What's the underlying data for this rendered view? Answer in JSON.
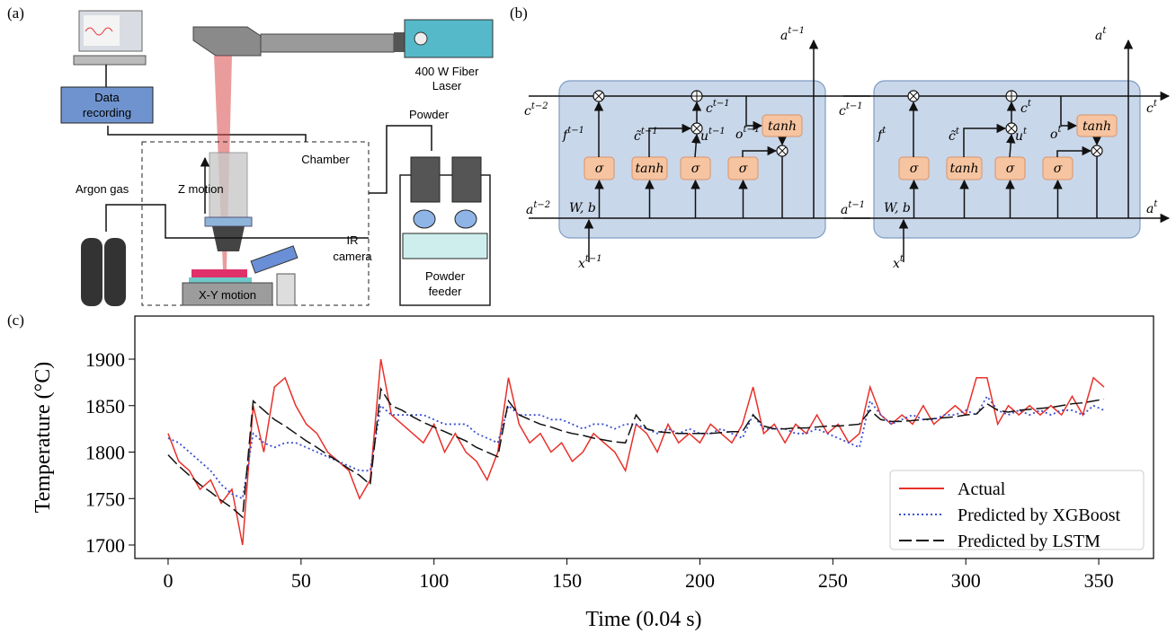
{
  "panel_labels": [
    "(a)",
    "(b)",
    "(c)"
  ],
  "diagram_a": {
    "laser": [
      "400 W Fiber",
      "Laser"
    ],
    "data_recording": [
      "Data",
      "recording"
    ],
    "powder": "Powder",
    "chamber": "Chamber",
    "z_motion": "Z motion",
    "argon_gas": "Argon gas",
    "ir_camera": [
      "IR",
      "camera"
    ],
    "xy_motion": "X-Y motion",
    "powder_feeder": [
      "Powder",
      "feeder"
    ]
  },
  "diagram_b": {
    "cells": [
      {
        "c_prev": {
          "base": "c",
          "sup": "t−2"
        },
        "a_prev": {
          "base": "a",
          "sup": "t−2"
        },
        "x": {
          "base": "x",
          "sup": "t−1"
        },
        "f": {
          "base": "f",
          "sup": "t−1"
        },
        "c_tilde": {
          "base": "c̃",
          "sup": "t−1"
        },
        "u": {
          "base": "u",
          "sup": "t−1"
        },
        "o": {
          "base": "o",
          "sup": "t−1"
        },
        "c": {
          "base": "c",
          "sup": "t−1"
        },
        "a_top": {
          "base": "a",
          "sup": "t−1"
        },
        "w_b": "W, b",
        "gates": [
          "σ",
          "tanh",
          "σ",
          "σ"
        ],
        "tanh_out": "tanh"
      },
      {
        "c_prev": {
          "base": "c",
          "sup": "t−1"
        },
        "a_prev": {
          "base": "a",
          "sup": "t−1"
        },
        "x": {
          "base": "x",
          "sup": "t"
        },
        "f": {
          "base": "f",
          "sup": "t"
        },
        "c_tilde": {
          "base": "c̃",
          "sup": "t"
        },
        "u": {
          "base": "u",
          "sup": "t"
        },
        "o": {
          "base": "o",
          "sup": "t"
        },
        "c": {
          "base": "c",
          "sup": "t"
        },
        "a_top": {
          "base": "a",
          "sup": "t"
        },
        "w_b": "W, b",
        "gates": [
          "σ",
          "tanh",
          "σ",
          "σ"
        ],
        "tanh_out": "tanh"
      }
    ],
    "c_final": {
      "base": "c",
      "sup": "t"
    },
    "a_final": {
      "base": "a",
      "sup": "t"
    }
  },
  "chart_data": {
    "type": "line",
    "xlabel": "Time (0.04 s)",
    "ylabel": "Temperature (°C)",
    "xlim": [
      -12.5,
      370.6
    ],
    "ylim": [
      1685.5,
      1946.4
    ],
    "xticks": [
      0,
      50,
      100,
      150,
      200,
      250,
      300,
      350
    ],
    "yticks": [
      1700,
      1750,
      1800,
      1850,
      1900
    ],
    "legend": "lower right",
    "x": [
      0,
      4,
      8,
      12,
      16,
      20,
      24,
      28,
      32,
      36,
      40,
      44,
      48,
      52,
      56,
      60,
      64,
      68,
      72,
      76,
      80,
      84,
      88,
      92,
      96,
      100,
      104,
      108,
      112,
      116,
      120,
      124,
      128,
      132,
      136,
      140,
      144,
      148,
      152,
      156,
      160,
      164,
      168,
      172,
      176,
      180,
      184,
      188,
      192,
      196,
      200,
      204,
      208,
      212,
      216,
      220,
      224,
      228,
      232,
      236,
      240,
      244,
      248,
      252,
      256,
      260,
      264,
      268,
      272,
      276,
      280,
      284,
      288,
      292,
      296,
      300,
      304,
      308,
      312,
      316,
      320,
      324,
      328,
      332,
      336,
      340,
      344,
      348,
      352
    ],
    "series": [
      {
        "name": "Actual",
        "color": "#e8302a",
        "dash": "solid",
        "values": [
          1820,
          1790,
          1780,
          1760,
          1770,
          1745,
          1760,
          1700,
          1850,
          1800,
          1870,
          1880,
          1850,
          1830,
          1820,
          1800,
          1790,
          1780,
          1750,
          1770,
          1900,
          1840,
          1830,
          1820,
          1810,
          1830,
          1800,
          1820,
          1800,
          1790,
          1770,
          1800,
          1880,
          1830,
          1810,
          1820,
          1800,
          1810,
          1790,
          1800,
          1820,
          1810,
          1800,
          1780,
          1830,
          1820,
          1800,
          1830,
          1810,
          1820,
          1810,
          1830,
          1820,
          1810,
          1830,
          1870,
          1820,
          1830,
          1810,
          1830,
          1820,
          1840,
          1820,
          1830,
          1810,
          1820,
          1870,
          1840,
          1830,
          1840,
          1830,
          1850,
          1830,
          1840,
          1850,
          1840,
          1880,
          1880,
          1830,
          1850,
          1840,
          1850,
          1840,
          1850,
          1840,
          1860,
          1840,
          1880,
          1870
        ]
      },
      {
        "name": "Predicted by XGBoost",
        "color": "#3b4fd0",
        "dash": "dotted",
        "values": [
          1815,
          1810,
          1800,
          1790,
          1780,
          1765,
          1755,
          1750,
          1820,
          1810,
          1805,
          1810,
          1810,
          1805,
          1800,
          1795,
          1790,
          1785,
          1780,
          1780,
          1850,
          1840,
          1840,
          1840,
          1840,
          1835,
          1830,
          1830,
          1830,
          1820,
          1815,
          1810,
          1850,
          1840,
          1840,
          1840,
          1835,
          1835,
          1830,
          1825,
          1830,
          1830,
          1825,
          1830,
          1830,
          1825,
          1820,
          1825,
          1820,
          1825,
          1820,
          1820,
          1825,
          1820,
          1815,
          1840,
          1825,
          1825,
          1825,
          1820,
          1820,
          1825,
          1820,
          1815,
          1810,
          1805,
          1855,
          1840,
          1830,
          1835,
          1840,
          1835,
          1835,
          1840,
          1840,
          1845,
          1840,
          1860,
          1845,
          1840,
          1845,
          1840,
          1845,
          1840,
          1845,
          1845,
          1840,
          1850,
          1845
        ]
      },
      {
        "name": "Predicted by LSTM",
        "color": "#111111",
        "dash": "dashed",
        "values": [
          1797,
          1785,
          1775,
          1765,
          1757,
          1748,
          1740,
          1730,
          1855,
          1845,
          1835,
          1828,
          1820,
          1812,
          1805,
          1797,
          1790,
          1782,
          1775,
          1765,
          1868,
          1850,
          1845,
          1838,
          1832,
          1827,
          1822,
          1817,
          1812,
          1805,
          1800,
          1795,
          1855,
          1840,
          1835,
          1830,
          1827,
          1823,
          1820,
          1818,
          1815,
          1813,
          1811,
          1810,
          1840,
          1825,
          1822,
          1821,
          1820,
          1820,
          1820,
          1820,
          1821,
          1822,
          1822,
          1840,
          1828,
          1825,
          1825,
          1826,
          1826,
          1827,
          1828,
          1828,
          1829,
          1830,
          1845,
          1835,
          1833,
          1833,
          1834,
          1835,
          1836,
          1837,
          1838,
          1840,
          1841,
          1852,
          1845,
          1843,
          1845,
          1846,
          1847,
          1848,
          1850,
          1852,
          1853,
          1855,
          1857
        ]
      }
    ]
  }
}
